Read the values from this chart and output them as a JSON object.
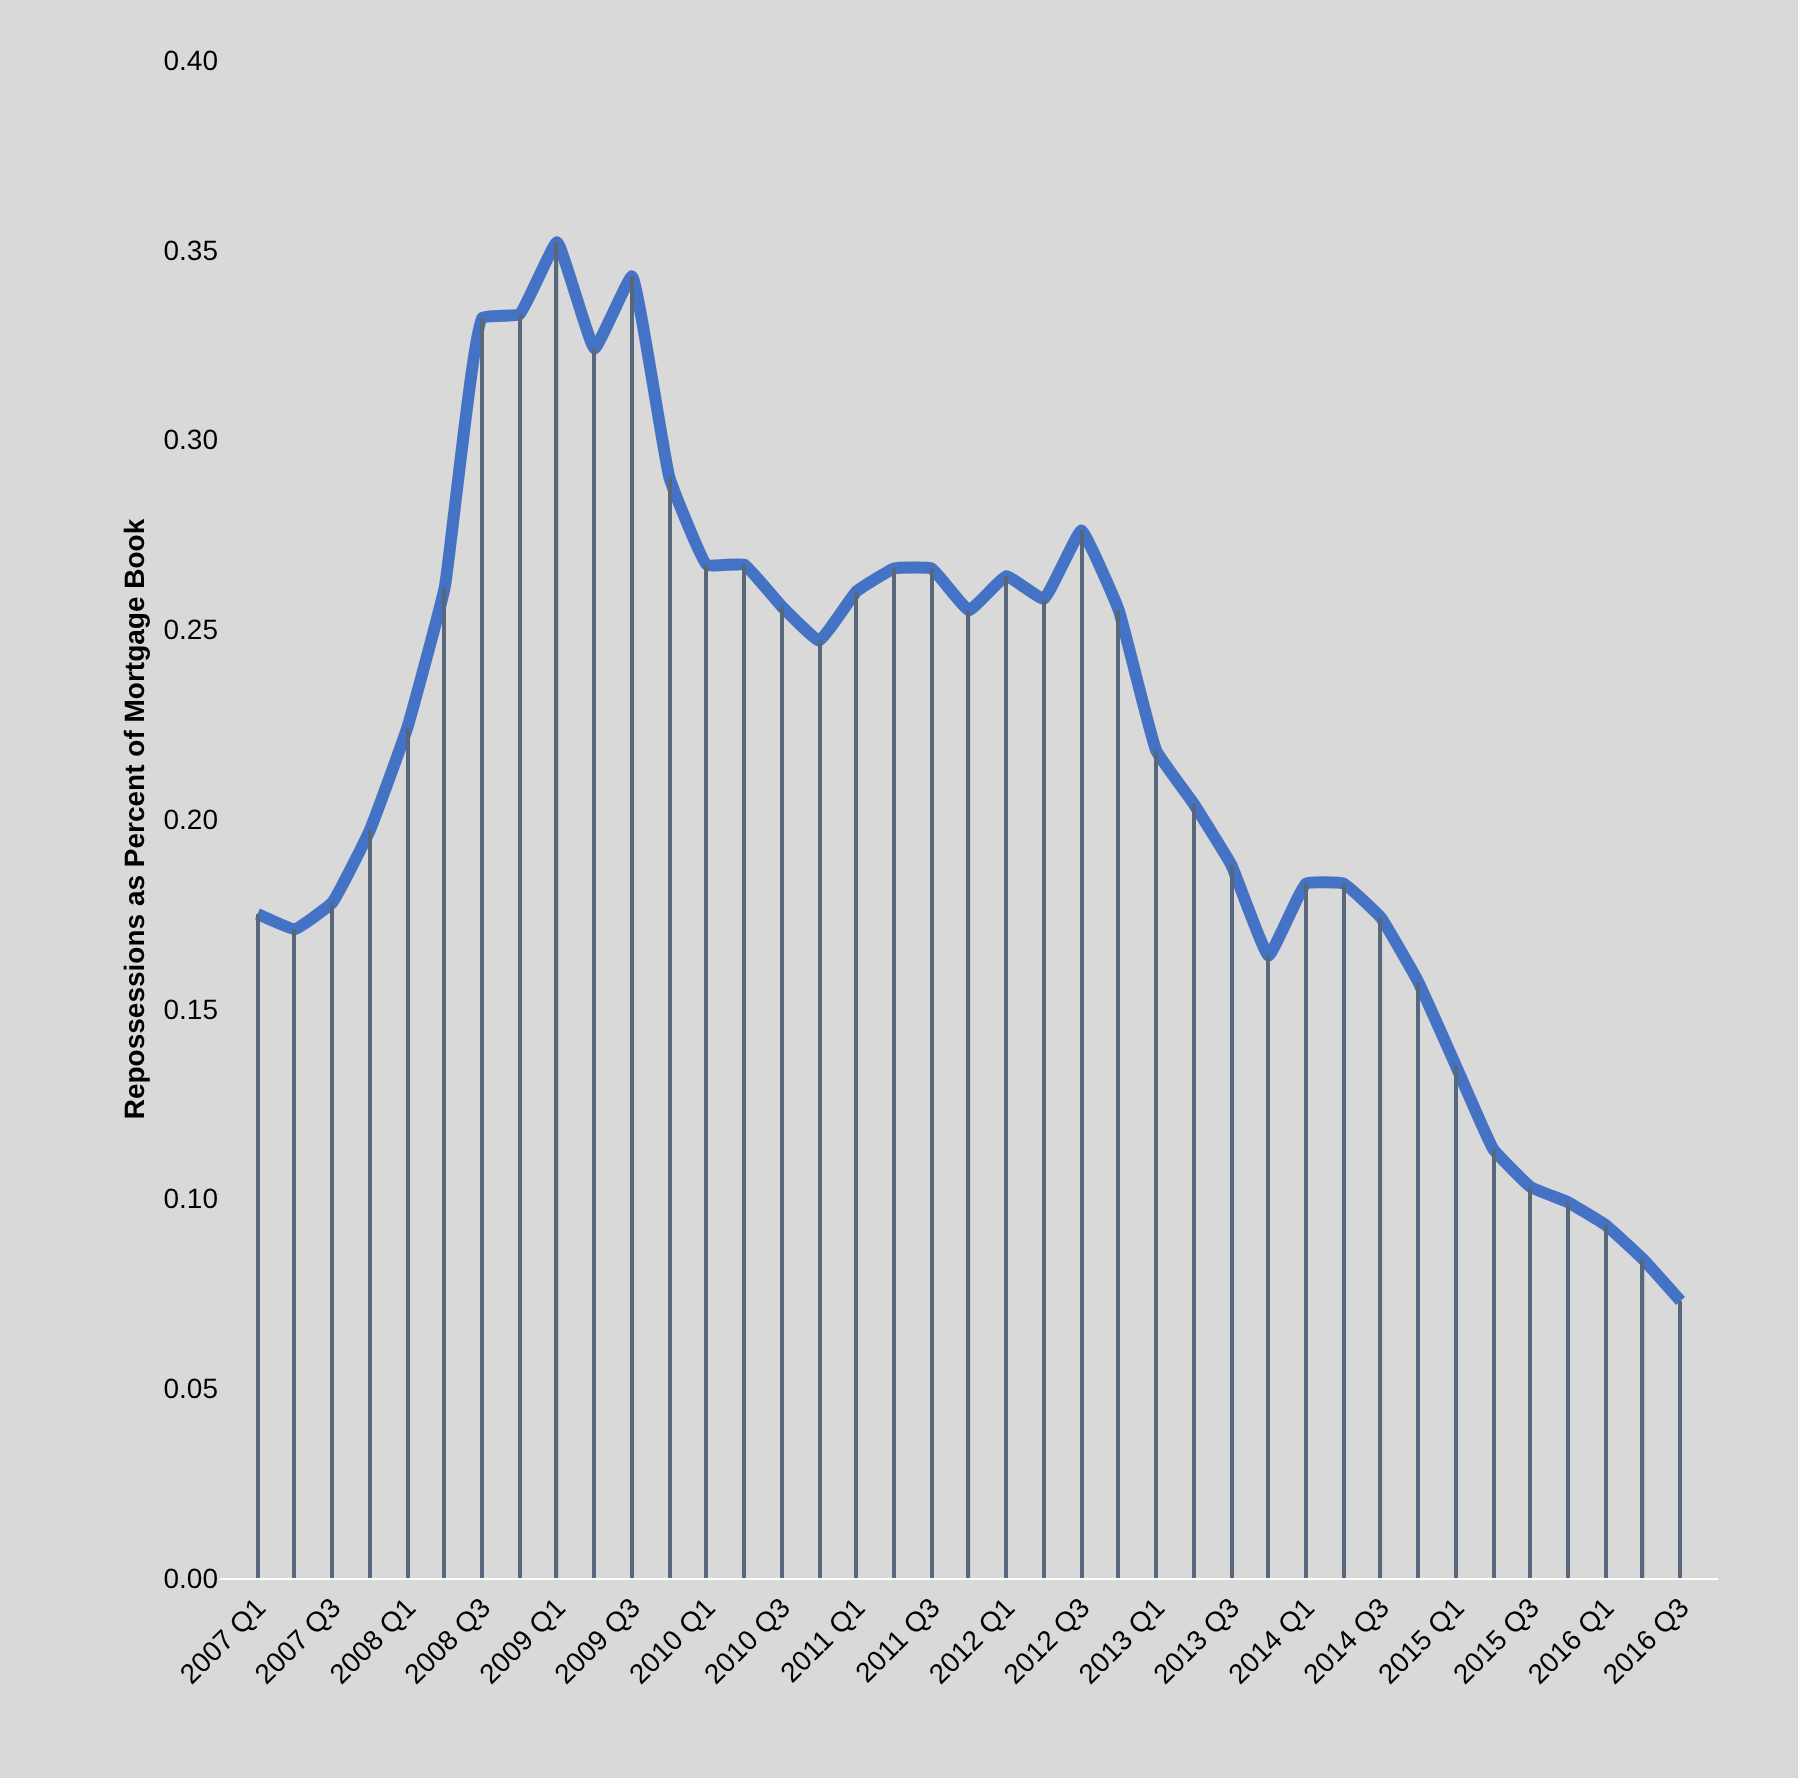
{
  "chart_data": {
    "type": "line",
    "ylabel": "Repossessions as Percent of Mortgage Book",
    "categories": [
      "2007 Q1",
      null,
      "2007 Q3",
      null,
      "2008 Q1",
      null,
      "2008 Q3",
      null,
      "2009 Q1",
      null,
      "2009 Q3",
      null,
      "2010 Q1",
      null,
      "2010 Q3",
      null,
      "2011 Q1",
      null,
      "2011 Q3",
      null,
      "2012 Q1",
      null,
      "2012 Q3",
      null,
      "2013 Q1",
      null,
      "2013 Q3",
      null,
      "2014 Q1",
      null,
      "2014 Q3",
      null,
      "2015 Q1",
      null,
      "2015 Q3",
      null,
      "2016 Q1",
      null,
      "2016 Q3"
    ],
    "series": [
      {
        "type": "bar",
        "color": "#59677a",
        "values": [
          0.175,
          0.171,
          0.178,
          0.197,
          0.224,
          0.261,
          0.332,
          0.333,
          0.352,
          0.324,
          0.343,
          0.29,
          0.267,
          0.267,
          0.256,
          0.247,
          0.26,
          0.266,
          0.266,
          0.255,
          0.264,
          0.258,
          0.276,
          0.255,
          0.218,
          0.204,
          0.188,
          0.164,
          0.183,
          0.183,
          0.174,
          0.157,
          0.135,
          0.113,
          0.103,
          0.099,
          0.093,
          0.084,
          0.073
        ]
      },
      {
        "color": "#4472c4",
        "values": [
          0.175,
          0.171,
          0.178,
          0.197,
          0.224,
          0.261,
          0.332,
          0.333,
          0.352,
          0.324,
          0.343,
          0.29,
          0.267,
          0.267,
          0.256,
          0.247,
          0.26,
          0.266,
          0.266,
          0.255,
          0.264,
          0.258,
          0.276,
          0.255,
          0.218,
          0.204,
          0.188,
          0.164,
          0.183,
          0.183,
          0.174,
          0.157,
          0.135,
          0.113,
          0.103,
          0.099,
          0.093,
          0.084,
          0.073
        ]
      }
    ],
    "ylim": [
      0,
      0.4
    ],
    "yticks": [
      {
        "value": 0,
        "label": "0.00"
      },
      {
        "value": 0.05,
        "label": "0.05"
      },
      {
        "value": 0.1,
        "label": "0.10"
      },
      {
        "value": 0.15,
        "label": "0.15"
      },
      {
        "value": 0.2,
        "label": "0.20"
      },
      {
        "value": 0.25,
        "label": "0.25"
      },
      {
        "value": 0.3,
        "label": "0.30"
      },
      {
        "value": 0.35,
        "label": "0.35"
      },
      {
        "value": 0.4,
        "label": "0.40"
      }
    ],
    "grid": false,
    "marker": "none",
    "line_style": "solid"
  }
}
